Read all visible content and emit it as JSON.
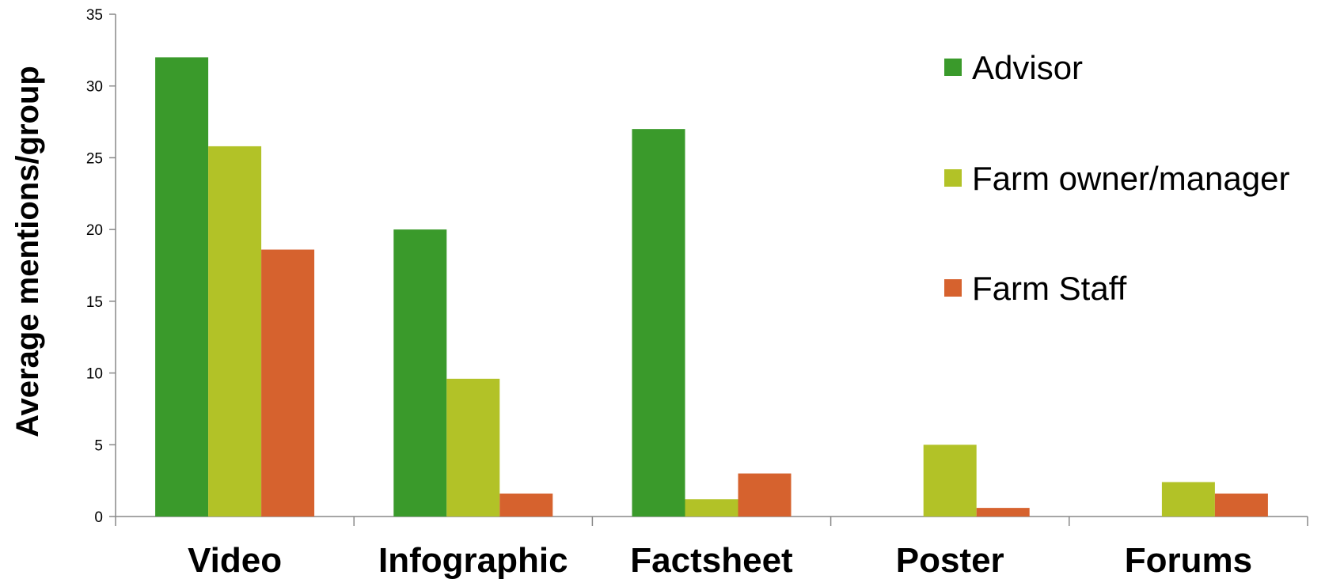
{
  "chart_data": {
    "type": "bar",
    "title": "",
    "xlabel": "",
    "ylabel": "Average mentions/group",
    "ylim": [
      0,
      35
    ],
    "yticks": [
      0,
      5,
      10,
      15,
      20,
      25,
      30,
      35
    ],
    "categories": [
      "Video",
      "Infographic",
      "Factsheet",
      "Poster",
      "Forums"
    ],
    "series": [
      {
        "name": "Advisor",
        "color": "#3a9a2b",
        "values": [
          32,
          20,
          27,
          0,
          0
        ]
      },
      {
        "name": "Farm owner/manager",
        "color": "#b2c227",
        "values": [
          25.8,
          9.6,
          1.2,
          5,
          2.4
        ]
      },
      {
        "name": "Farm Staff",
        "color": "#d6622e",
        "values": [
          18.6,
          1.6,
          3,
          0.6,
          1.6
        ]
      }
    ],
    "legend_position": "top-right",
    "grid": false
  }
}
